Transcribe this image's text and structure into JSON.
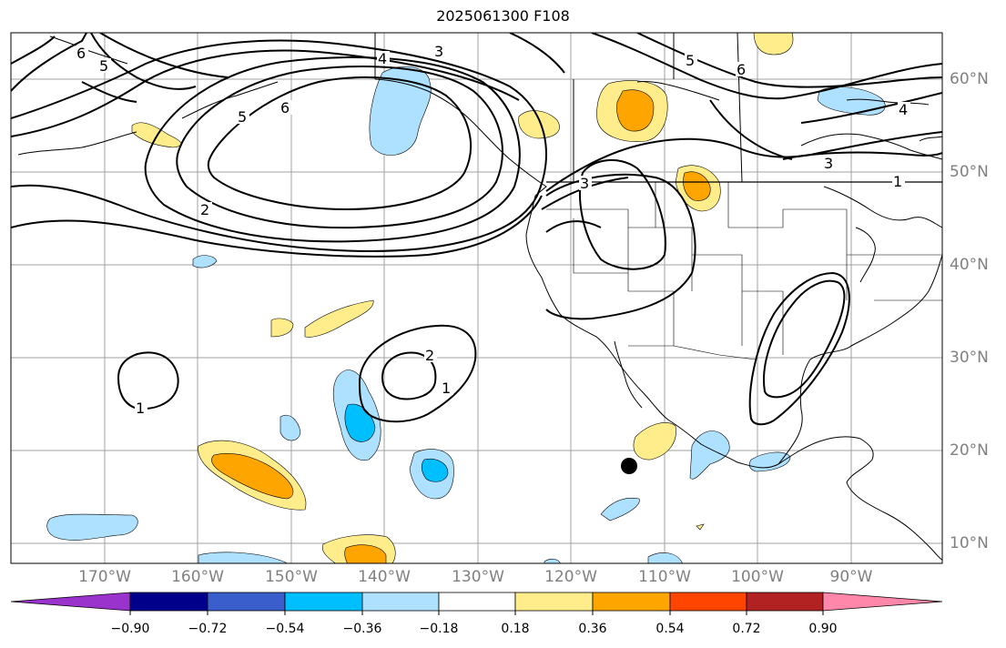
{
  "title": "2025061300 F108",
  "lon_labels": [
    "170°W",
    "160°W",
    "150°W",
    "140°W",
    "130°W",
    "120°W",
    "110°W",
    "100°W",
    "90°W"
  ],
  "lat_labels": [
    "60°N",
    "50°N",
    "40°N",
    "30°N",
    "20°N",
    "10°N"
  ],
  "colorbar": {
    "ticks": [
      "−0.90",
      "−0.72",
      "−0.54",
      "−0.36",
      "−0.18",
      "0.18",
      "0.36",
      "0.54",
      "0.72",
      "0.90"
    ],
    "colors": [
      "#9933cc",
      "#00008b",
      "#3a5fcd",
      "#00bfff",
      "#aee0ff",
      "#ffffff",
      "#ffec8b",
      "#ffa500",
      "#ff4500",
      "#b22222",
      "#ff88aa"
    ]
  },
  "contour_labels": [
    "6",
    "5",
    "5",
    "6",
    "4",
    "3",
    "2",
    "3",
    "5",
    "6",
    "4",
    "3",
    "1",
    "1",
    "2",
    "1"
  ],
  "marker": "storm-center"
}
